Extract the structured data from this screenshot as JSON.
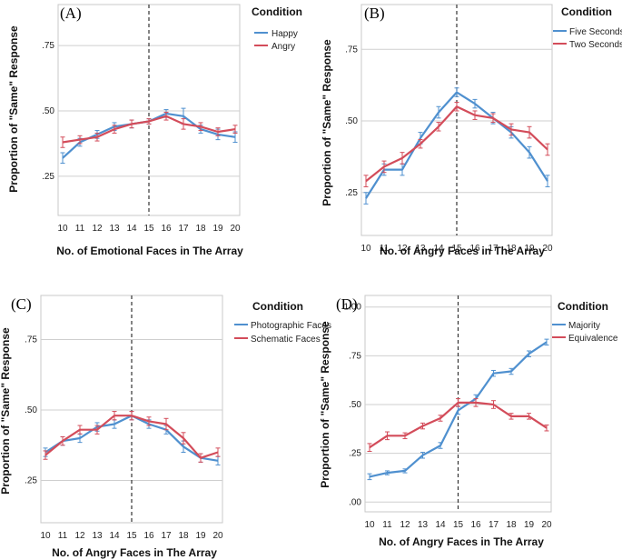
{
  "colors": {
    "blue": "#4f90cf",
    "red": "#d34c5a",
    "grid": "#cfcfcf",
    "axis": "#8a8a8a",
    "frame": "#c8c8c8"
  },
  "chart_data": [
    {
      "type": "line",
      "panel_label": "(A)",
      "ylabel": "Proportion of \"Same\" Response",
      "xlabel": "No. of Emotional Faces in The Array",
      "legend_title": "Condition",
      "ylim": [
        0.1,
        0.9
      ],
      "yticks": [
        0.25,
        0.5,
        0.75
      ],
      "ytick_labels": [
        ".25",
        ".50",
        ".75"
      ],
      "x": [
        10,
        11,
        12,
        13,
        14,
        15,
        16,
        17,
        18,
        19,
        20
      ],
      "reference_line_x": 15,
      "series": [
        {
          "name": "Happy",
          "color": "blue",
          "values": [
            0.32,
            0.38,
            0.41,
            0.44,
            0.45,
            0.46,
            0.49,
            0.48,
            0.43,
            0.41,
            0.4
          ],
          "errors": [
            0.02,
            0.015,
            0.015,
            0.015,
            0.015,
            0.01,
            0.015,
            0.03,
            0.015,
            0.02,
            0.02
          ]
        },
        {
          "name": "Angry",
          "color": "red",
          "values": [
            0.38,
            0.39,
            0.4,
            0.43,
            0.45,
            0.46,
            0.48,
            0.45,
            0.44,
            0.42,
            0.43
          ],
          "errors": [
            0.02,
            0.015,
            0.015,
            0.015,
            0.015,
            0.01,
            0.015,
            0.02,
            0.015,
            0.015,
            0.015
          ]
        }
      ]
    },
    {
      "type": "line",
      "panel_label": "(B)",
      "ylabel": "Proportion of \"Same\" Response",
      "xlabel": "No. of Angry Faces in The Array",
      "legend_title": "Condition",
      "ylim": [
        0.1,
        0.9
      ],
      "yticks": [
        0.25,
        0.5,
        0.75
      ],
      "ytick_labels": [
        ".25",
        ".50",
        ".75"
      ],
      "x": [
        10,
        11,
        12,
        13,
        14,
        15,
        16,
        17,
        18,
        19,
        20
      ],
      "reference_line_x": 15,
      "series": [
        {
          "name": "Five Seconds",
          "color": "blue",
          "values": [
            0.23,
            0.33,
            0.33,
            0.44,
            0.53,
            0.6,
            0.56,
            0.51,
            0.46,
            0.39,
            0.29
          ],
          "errors": [
            0.02,
            0.02,
            0.02,
            0.02,
            0.02,
            0.015,
            0.015,
            0.02,
            0.02,
            0.02,
            0.02
          ]
        },
        {
          "name": "Two Seconds",
          "color": "red",
          "values": [
            0.29,
            0.34,
            0.37,
            0.42,
            0.48,
            0.55,
            0.52,
            0.51,
            0.47,
            0.46,
            0.4
          ],
          "errors": [
            0.02,
            0.02,
            0.02,
            0.015,
            0.015,
            0.015,
            0.015,
            0.015,
            0.02,
            0.02,
            0.02
          ]
        }
      ]
    },
    {
      "type": "line",
      "panel_label": "(C)",
      "ylabel": "Proportion of \"Same\" Response",
      "xlabel": "No. of Angry Faces in The Array",
      "legend_title": "Condition",
      "ylim": [
        0.1,
        0.9
      ],
      "yticks": [
        0.25,
        0.5,
        0.75
      ],
      "ytick_labels": [
        ".25",
        ".50",
        ".75"
      ],
      "x": [
        10,
        11,
        12,
        13,
        14,
        15,
        16,
        17,
        18,
        19,
        20
      ],
      "reference_line_x": 15,
      "series": [
        {
          "name": "Photographic Faces",
          "color": "blue",
          "values": [
            0.35,
            0.39,
            0.4,
            0.44,
            0.45,
            0.48,
            0.45,
            0.43,
            0.37,
            0.33,
            0.32
          ],
          "errors": [
            0.015,
            0.015,
            0.015,
            0.015,
            0.015,
            0.015,
            0.015,
            0.015,
            0.02,
            0.015,
            0.015
          ]
        },
        {
          "name": "Schematic Faces",
          "color": "red",
          "values": [
            0.34,
            0.39,
            0.43,
            0.43,
            0.48,
            0.48,
            0.46,
            0.45,
            0.4,
            0.33,
            0.35
          ],
          "errors": [
            0.015,
            0.015,
            0.015,
            0.015,
            0.015,
            0.015,
            0.015,
            0.02,
            0.02,
            0.015,
            0.015
          ]
        }
      ]
    },
    {
      "type": "line",
      "panel_label": "(D)",
      "ylabel": "Proportion of \"Same\" Response",
      "xlabel": "No. of Angry Faces in The Array",
      "legend_title": "Condition",
      "ylim": [
        -0.05,
        1.05
      ],
      "yticks": [
        0.0,
        0.25,
        0.5,
        0.75,
        1.0
      ],
      "ytick_labels": [
        ".00",
        ".25",
        ".50",
        ".75",
        "1.00"
      ],
      "x": [
        10,
        11,
        12,
        13,
        14,
        15,
        16,
        17,
        18,
        19,
        20
      ],
      "reference_line_x": 15,
      "series": [
        {
          "name": "Majority",
          "color": "blue",
          "values": [
            0.13,
            0.15,
            0.16,
            0.24,
            0.29,
            0.47,
            0.53,
            0.66,
            0.67,
            0.76,
            0.82
          ],
          "errors": [
            0.015,
            0.01,
            0.01,
            0.015,
            0.015,
            0.02,
            0.02,
            0.015,
            0.015,
            0.015,
            0.015
          ]
        },
        {
          "name": "Equivalence",
          "color": "red",
          "values": [
            0.28,
            0.34,
            0.34,
            0.39,
            0.43,
            0.51,
            0.51,
            0.5,
            0.44,
            0.44,
            0.38
          ],
          "errors": [
            0.02,
            0.02,
            0.015,
            0.015,
            0.015,
            0.02,
            0.02,
            0.02,
            0.015,
            0.015,
            0.015
          ]
        }
      ]
    }
  ]
}
